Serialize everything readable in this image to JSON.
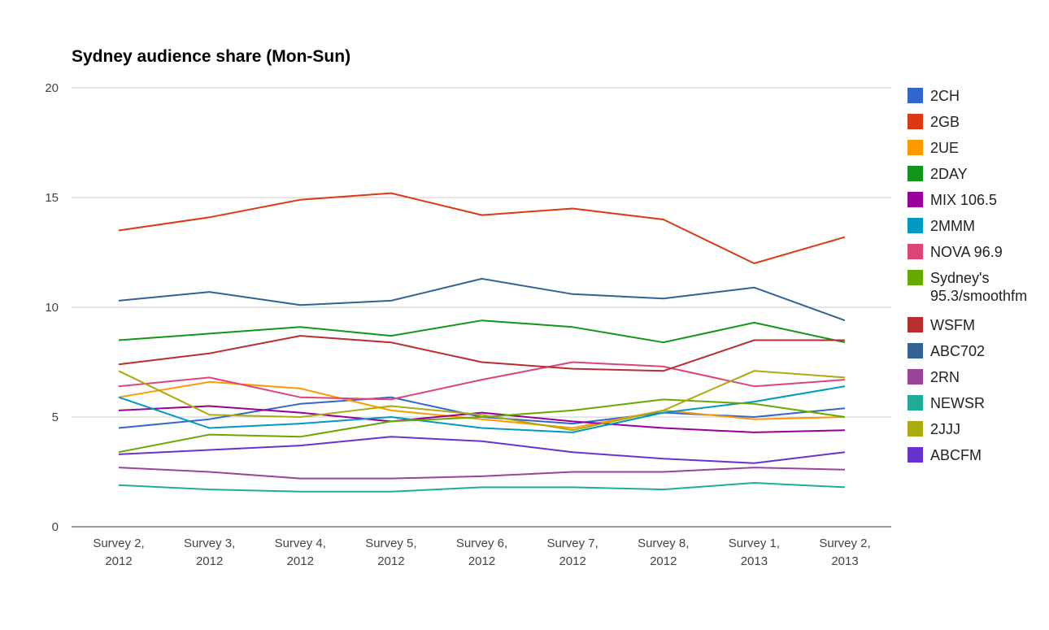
{
  "chart_data": {
    "type": "line",
    "title": "Sydney audience share (Mon-Sun)",
    "xlabel": "",
    "ylabel": "",
    "ylim": [
      0,
      20
    ],
    "yticks": [
      "0",
      "5",
      "10",
      "15",
      "20"
    ],
    "grid": true,
    "legend_position": "right",
    "categories": [
      [
        "Survey 2,",
        "2012"
      ],
      [
        "Survey 3,",
        "2012"
      ],
      [
        "Survey 4,",
        "2012"
      ],
      [
        "Survey 5,",
        "2012"
      ],
      [
        "Survey 6,",
        "2012"
      ],
      [
        "Survey 7,",
        "2012"
      ],
      [
        "Survey 8,",
        "2012"
      ],
      [
        "Survey 1,",
        "2013"
      ],
      [
        "Survey 2,",
        "2013"
      ]
    ],
    "series": [
      {
        "name": "2CH",
        "color": "#3366cc",
        "values": [
          4.5,
          4.9,
          5.6,
          5.9,
          5.0,
          4.7,
          5.2,
          5.0,
          5.4
        ]
      },
      {
        "name": "2GB",
        "color": "#dc3912",
        "values": [
          13.5,
          14.1,
          14.9,
          15.2,
          14.2,
          14.5,
          14.0,
          12.0,
          13.2
        ]
      },
      {
        "name": "2UE",
        "color": "#ff9900",
        "values": [
          5.9,
          6.6,
          6.3,
          5.3,
          4.9,
          4.5,
          5.3,
          4.9,
          5.0
        ]
      },
      {
        "name": "2DAY",
        "color": "#109618",
        "values": [
          8.5,
          8.8,
          9.1,
          8.7,
          9.4,
          9.1,
          8.4,
          9.3,
          8.4
        ]
      },
      {
        "name": "MIX 106.5",
        "color": "#990099",
        "values": [
          5.3,
          5.5,
          5.2,
          4.8,
          5.2,
          4.8,
          4.5,
          4.3,
          4.4
        ]
      },
      {
        "name": "2MMM",
        "color": "#0099c6",
        "values": [
          5.9,
          4.5,
          4.7,
          5.0,
          4.5,
          4.3,
          5.2,
          5.7,
          6.4
        ]
      },
      {
        "name": "NOVA 96.9",
        "color": "#dd4477",
        "values": [
          6.4,
          6.8,
          5.9,
          5.8,
          6.7,
          7.5,
          7.3,
          6.4,
          6.7
        ]
      },
      {
        "name": [
          "Sydney's",
          "95.3/smoothfm"
        ],
        "color": "#66aa00",
        "values": [
          3.4,
          4.2,
          4.1,
          4.8,
          5.0,
          5.3,
          5.8,
          5.6,
          5.0
        ]
      },
      {
        "name": "WSFM",
        "color": "#b82e2e",
        "values": [
          7.4,
          7.9,
          8.7,
          8.4,
          7.5,
          7.2,
          7.1,
          8.5,
          8.5
        ]
      },
      {
        "name": "ABC702",
        "color": "#316395",
        "values": [
          10.3,
          10.7,
          10.1,
          10.3,
          11.3,
          10.6,
          10.4,
          10.9,
          9.4
        ]
      },
      {
        "name": "2RN",
        "color": "#994499",
        "values": [
          2.7,
          2.5,
          2.2,
          2.2,
          2.3,
          2.5,
          2.5,
          2.7,
          2.6
        ]
      },
      {
        "name": "NEWSR",
        "color": "#22aa99",
        "values": [
          1.9,
          1.7,
          1.6,
          1.6,
          1.8,
          1.8,
          1.7,
          2.0,
          1.8
        ]
      },
      {
        "name": "2JJJ",
        "color": "#aaaa11",
        "values": [
          7.1,
          5.1,
          5.0,
          5.5,
          5.1,
          4.4,
          5.3,
          7.1,
          6.8
        ]
      },
      {
        "name": "ABCFM",
        "color": "#6633cc",
        "values": [
          3.3,
          3.5,
          3.7,
          4.1,
          3.9,
          3.4,
          3.1,
          2.9,
          3.4
        ]
      }
    ]
  }
}
